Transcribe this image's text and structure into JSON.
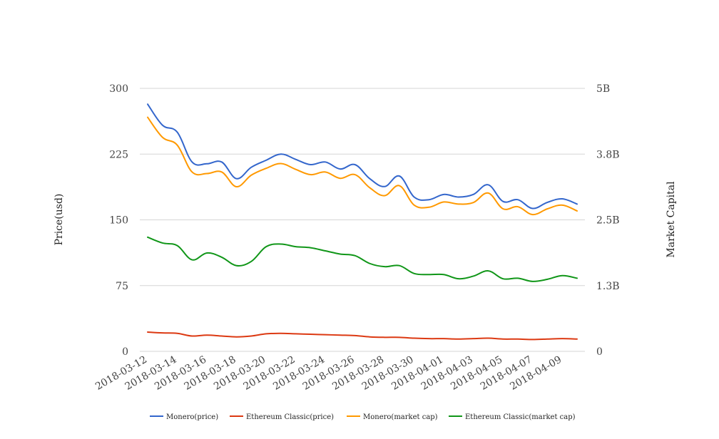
{
  "chart_data": {
    "type": "line",
    "x": [
      "2018-03-12",
      "2018-03-13",
      "2018-03-14",
      "2018-03-15",
      "2018-03-16",
      "2018-03-17",
      "2018-03-18",
      "2018-03-19",
      "2018-03-20",
      "2018-03-21",
      "2018-03-22",
      "2018-03-23",
      "2018-03-24",
      "2018-03-25",
      "2018-03-26",
      "2018-03-27",
      "2018-03-28",
      "2018-03-29",
      "2018-03-30",
      "2018-03-31",
      "2018-04-01",
      "2018-04-02",
      "2018-04-03",
      "2018-04-04",
      "2018-04-05",
      "2018-04-06",
      "2018-04-07",
      "2018-04-08",
      "2018-04-09",
      "2018-04-10"
    ],
    "x_tick_labels": [
      "2018-03-12",
      "2018-03-14",
      "2018-03-16",
      "2018-03-18",
      "2018-03-20",
      "2018-03-22",
      "2018-03-24",
      "2018-03-26",
      "2018-03-28",
      "2018-03-30",
      "2018-04-01",
      "2018-04-03",
      "2018-04-05",
      "2018-04-07",
      "2018-04-09"
    ],
    "ylabel": "Price(usd)",
    "y2label": "Market Capital",
    "ylim": [
      0,
      300
    ],
    "y_ticks": [
      0,
      75,
      150,
      225,
      300
    ],
    "y_tick_labels": [
      "0",
      "75",
      "150",
      "225",
      "300"
    ],
    "y2lim": [
      0,
      5000000000
    ],
    "y2_ticks": [
      0,
      1250000000,
      2500000000,
      3750000000,
      5000000000
    ],
    "y2_tick_labels": [
      "0",
      "1.3B",
      "2.5B",
      "3.8B",
      "5B"
    ],
    "grid": true,
    "legend_position": "bottom",
    "series": [
      {
        "name": "Monero(price)",
        "axis": "left",
        "color": "#3366cc",
        "values": [
          282,
          258,
          250,
          216,
          214,
          216,
          197,
          210,
          218,
          225,
          219,
          213,
          216,
          208,
          213,
          197,
          188,
          200,
          176,
          173,
          179,
          176,
          179,
          190,
          171,
          173,
          163,
          170,
          174,
          168
        ]
      },
      {
        "name": "Ethereum Classic(price)",
        "axis": "left",
        "color": "#dc3912",
        "values": [
          22,
          21,
          20.5,
          17.5,
          18.5,
          17.5,
          16.5,
          17.5,
          20,
          20.5,
          20,
          19.5,
          19,
          18.5,
          18,
          16.5,
          16,
          16,
          15,
          14.5,
          14.5,
          14,
          14.5,
          15,
          14,
          14,
          13.5,
          14,
          14.5,
          14
        ]
      },
      {
        "name": "Monero(market cap)",
        "axis": "right",
        "color": "#ff9900",
        "values": [
          4450000000,
          4070000000,
          3920000000,
          3410000000,
          3380000000,
          3410000000,
          3130000000,
          3350000000,
          3480000000,
          3570000000,
          3460000000,
          3360000000,
          3410000000,
          3290000000,
          3360000000,
          3110000000,
          2960000000,
          3150000000,
          2780000000,
          2740000000,
          2840000000,
          2800000000,
          2830000000,
          3010000000,
          2710000000,
          2750000000,
          2600000000,
          2710000000,
          2780000000,
          2670000000
        ]
      },
      {
        "name": "Ethereum Classic(market cap)",
        "axis": "right",
        "color": "#109618",
        "values": [
          2170000000,
          2060000000,
          2010000000,
          1740000000,
          1870000000,
          1790000000,
          1630000000,
          1710000000,
          1990000000,
          2040000000,
          1990000000,
          1970000000,
          1910000000,
          1850000000,
          1820000000,
          1670000000,
          1610000000,
          1630000000,
          1480000000,
          1460000000,
          1460000000,
          1380000000,
          1430000000,
          1530000000,
          1380000000,
          1390000000,
          1330000000,
          1370000000,
          1440000000,
          1390000000
        ]
      }
    ]
  }
}
